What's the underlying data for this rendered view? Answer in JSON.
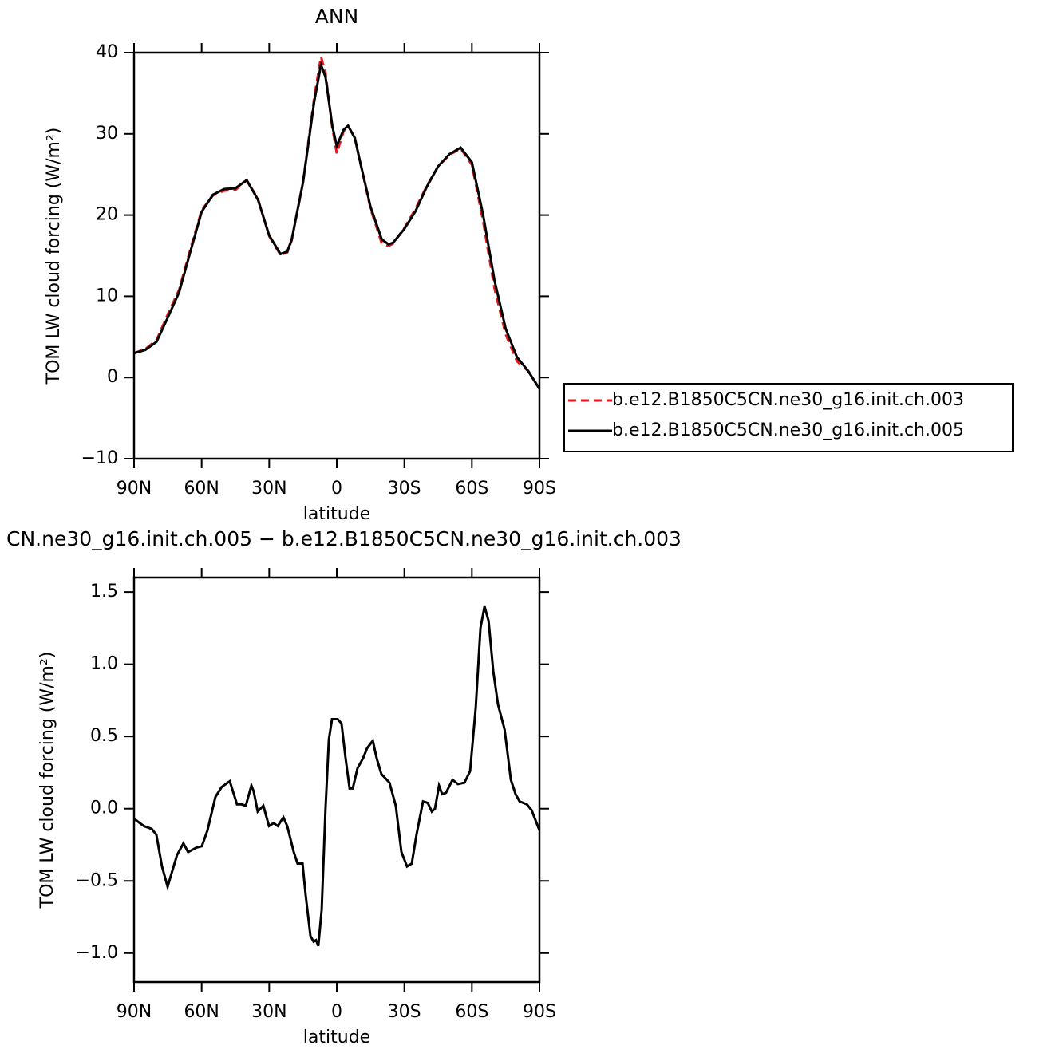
{
  "chart_data": [
    {
      "type": "line",
      "title": "ANN",
      "xlabel": "latitude",
      "ylabel": "TOM LW cloud forcing (W/m²)",
      "x": [
        90,
        85,
        80,
        75,
        70,
        65,
        60,
        55,
        50,
        45,
        40,
        35,
        30,
        25,
        22,
        20,
        15,
        10,
        7,
        5,
        2,
        0,
        -3,
        -5,
        -8,
        -10,
        -15,
        -20,
        -23,
        -25,
        -30,
        -35,
        -40,
        -45,
        -50,
        -55,
        -60,
        -65,
        -70,
        -75,
        -80,
        -85,
        -90
      ],
      "series": [
        {
          "name": "b.e12.B1850C5CN.ne30_g16.init.ch.003",
          "color": "#e41a1c",
          "linestyle": "dashed",
          "values": [
            3.0,
            3.5,
            4.6,
            7.8,
            10.8,
            15.8,
            20.6,
            22.4,
            23.0,
            23.1,
            24.3,
            22.0,
            17.4,
            15.1,
            15.4,
            16.9,
            24.0,
            34.5,
            39.5,
            37.5,
            30.8,
            27.6,
            30.3,
            31.0,
            29.5,
            27.0,
            20.8,
            16.5,
            16.2,
            16.5,
            18.4,
            20.8,
            23.6,
            26.0,
            27.4,
            28.2,
            26.2,
            19.2,
            11.0,
            5.3,
            2.0,
            0.8,
            -1.4
          ]
        },
        {
          "name": "b.e12.B1850C5CN.ne30_g16.init.ch.005",
          "color": "#000000",
          "linestyle": "solid",
          "values": [
            3.0,
            3.4,
            4.4,
            7.4,
            10.5,
            15.5,
            20.4,
            22.5,
            23.2,
            23.3,
            24.3,
            21.9,
            17.5,
            15.2,
            15.5,
            17.0,
            24.0,
            34.0,
            38.5,
            37.0,
            31.0,
            28.5,
            30.5,
            31.0,
            29.5,
            27.0,
            21.0,
            17.0,
            16.4,
            16.6,
            18.3,
            20.5,
            23.5,
            26.0,
            27.5,
            28.3,
            26.5,
            20.0,
            12.0,
            6.0,
            2.5,
            0.8,
            -1.4
          ]
        }
      ],
      "xlim": [
        90,
        -90
      ],
      "ylim": [
        -10,
        40
      ],
      "xticks": [
        {
          "value": 90,
          "label": "90N"
        },
        {
          "value": 60,
          "label": "60N"
        },
        {
          "value": 30,
          "label": "30N"
        },
        0,
        {
          "value": -30,
          "label": "30S"
        },
        {
          "value": -60,
          "label": "60S"
        },
        {
          "value": -90,
          "label": "90S"
        }
      ],
      "yticks": [
        {
          "value": -10,
          "label": "−10"
        },
        0,
        10,
        20,
        30,
        40
      ],
      "legend": "outside right"
    },
    {
      "type": "line",
      "title": "CN.ne30_g16.init.ch.005 − b.e12.B1850C5CN.ne30_g16.init.ch.003",
      "xlabel": "latitude",
      "ylabel": "TOM LW cloud forcing (W/m²)",
      "x": [
        90,
        85.7,
        82.2,
        80.1,
        77.6,
        75.1,
        73.4,
        70.9,
        68.1,
        66.0,
        62.4,
        59.9,
        57.4,
        53.9,
        51.1,
        47.5,
        44.3,
        42.2,
        40.4,
        37.9,
        36.9,
        35.1,
        32.6,
        30.1,
        28.0,
        26.2,
        23.7,
        22.0,
        19.1,
        17.4,
        15.2,
        13.8,
        11.7,
        10.3,
        9.2,
        8.2,
        6.7,
        5.0,
        3.5,
        2.1,
        -0.4,
        -2.1,
        -3.9,
        -5.7,
        -7.1,
        -9.2,
        -11.7,
        -13.5,
        -16.0,
        -17.7,
        -19.8,
        -23.4,
        -26.2,
        -28.7,
        -31.2,
        -33.3,
        -35.4,
        -38.3,
        -40.4,
        -42.2,
        -43.6,
        -45.4,
        -46.8,
        -48.5,
        -51.4,
        -53.8,
        -56.7,
        -59.2,
        -61.7,
        -63.8,
        -65.6,
        -67.4,
        -69.5,
        -71.6,
        -74.5,
        -77.3,
        -79.4,
        -81.2,
        -84.4,
        -86.5,
        -90
      ],
      "series": [
        {
          "color": "#000000",
          "linestyle": "solid",
          "values": [
            -0.07,
            -0.12,
            -0.14,
            -0.18,
            -0.4,
            -0.54,
            -0.45,
            -0.32,
            -0.24,
            -0.3,
            -0.27,
            -0.26,
            -0.15,
            0.08,
            0.15,
            0.19,
            0.03,
            0.03,
            0.02,
            0.16,
            0.12,
            -0.02,
            0.02,
            -0.12,
            -0.1,
            -0.12,
            -0.06,
            -0.12,
            -0.3,
            -0.38,
            -0.38,
            -0.6,
            -0.88,
            -0.92,
            -0.91,
            -0.95,
            -0.7,
            0.0,
            0.48,
            0.62,
            0.62,
            0.59,
            0.35,
            0.14,
            0.14,
            0.28,
            0.35,
            0.42,
            0.47,
            0.35,
            0.24,
            0.18,
            0.02,
            -0.3,
            -0.4,
            -0.38,
            -0.18,
            0.05,
            0.04,
            -0.02,
            0.0,
            0.16,
            0.1,
            0.11,
            0.2,
            0.17,
            0.18,
            0.26,
            0.7,
            1.25,
            1.4,
            1.3,
            0.95,
            0.72,
            0.55,
            0.2,
            0.1,
            0.05,
            0.03,
            -0.01,
            -0.15
          ]
        }
      ],
      "xlim": [
        90,
        -90
      ],
      "ylim": [
        -1.2,
        1.6
      ],
      "xticks": [
        {
          "value": 90,
          "label": "90N"
        },
        {
          "value": 60,
          "label": "60N"
        },
        {
          "value": 30,
          "label": "30N"
        },
        0,
        {
          "value": -30,
          "label": "30S"
        },
        {
          "value": -60,
          "label": "60S"
        },
        {
          "value": -90,
          "label": "90S"
        }
      ],
      "yticks": [
        {
          "value": -1.0,
          "label": "−1.0"
        },
        {
          "value": -0.5,
          "label": "−0.5"
        },
        {
          "value": 0.0,
          "label": "0.0"
        },
        0.5,
        {
          "value": 1.0,
          "label": "1.0"
        },
        1.5
      ]
    }
  ]
}
